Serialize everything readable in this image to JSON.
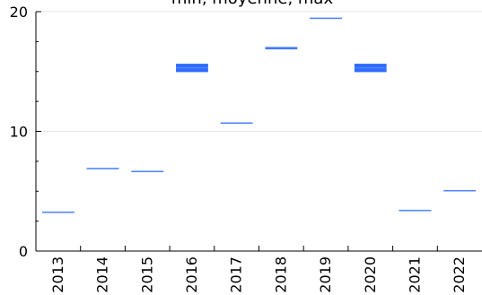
{
  "chart_data": {
    "type": "bar",
    "title": "min, moyenne, max",
    "xlabel": "",
    "ylabel": "",
    "categories": [
      "2013",
      "2014",
      "2015",
      "2016",
      "2017",
      "2018",
      "2019",
      "2020",
      "2021",
      "2022"
    ],
    "series": [
      {
        "name": "min",
        "values": [
          3.2,
          6.85,
          6.6,
          14.95,
          10.65,
          16.85,
          19.4,
          14.95,
          3.35,
          5.0
        ]
      },
      {
        "name": "moyenne",
        "values": [
          3.25,
          6.9,
          6.65,
          15.3,
          10.7,
          16.95,
          19.45,
          15.3,
          3.4,
          5.05
        ]
      },
      {
        "name": "max",
        "values": [
          3.3,
          6.95,
          6.7,
          15.65,
          10.75,
          17.05,
          19.5,
          15.65,
          3.45,
          5.1
        ]
      }
    ],
    "ylim": [
      0,
      20
    ],
    "yticks": [
      "0",
      "10",
      "20"
    ],
    "grid": true,
    "colors": {
      "range": "#2f6bff",
      "mean": "#5a8dff",
      "grid": "#e6e6e6",
      "axis": "#000000"
    }
  }
}
